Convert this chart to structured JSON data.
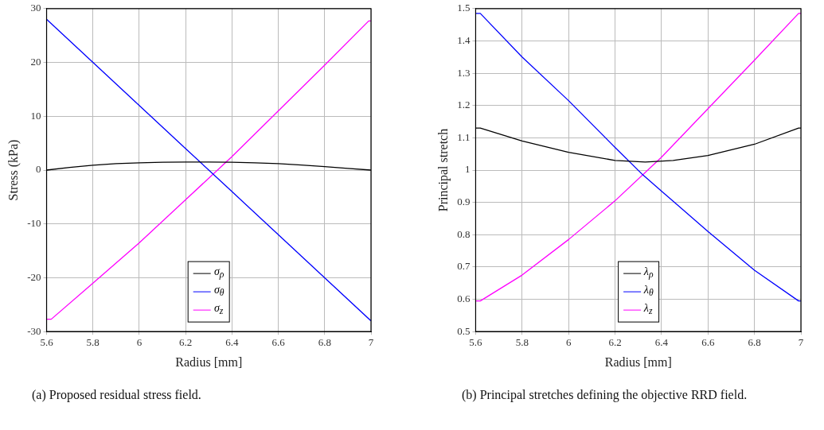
{
  "chart_data": [
    {
      "type": "line",
      "xlabel": "Radius [mm]",
      "ylabel": "Stress (kPa)",
      "xlim": [
        5.6,
        7
      ],
      "xticks": [
        5.6,
        5.8,
        6,
        6.2,
        6.4,
        6.6,
        6.8,
        7
      ],
      "ylim": [
        -30,
        30
      ],
      "yticks": [
        -30,
        -20,
        -10,
        0,
        10,
        20,
        30
      ],
      "grid": true,
      "legend": "bottom",
      "annotations": [
        "(a) Proposed residual stress field."
      ],
      "series": [
        {
          "name": "σ$_{ρ}$",
          "color": "#000000",
          "x": [
            5.6,
            5.7,
            5.8,
            5.9,
            6.0,
            6.1,
            6.2,
            6.3,
            6.4,
            6.5,
            6.6,
            6.7,
            6.8,
            6.9,
            7.0
          ],
          "values": [
            0,
            0.5,
            0.9,
            1.2,
            1.35,
            1.45,
            1.5,
            1.5,
            1.45,
            1.35,
            1.2,
            0.95,
            0.65,
            0.3,
            0
          ]
        },
        {
          "name": "σ$_{θ}$",
          "color": "#0000ff",
          "x": [
            5.6,
            5.8,
            6.0,
            6.2,
            6.4,
            6.6,
            6.8,
            7.0
          ],
          "values": [
            28,
            20,
            12,
            4,
            -4,
            -12,
            -20,
            -28
          ]
        },
        {
          "name": "σ$_{z}$",
          "color": "#ff00ff",
          "x": [
            5.6,
            5.62,
            5.8,
            6.0,
            6.2,
            6.4,
            6.6,
            6.8,
            6.99,
            7.0
          ],
          "values": [
            -27.7,
            -27.7,
            -21,
            -13.5,
            -5.5,
            2.5,
            11,
            19.5,
            27.7,
            27.7
          ]
        }
      ]
    },
    {
      "type": "line",
      "xlabel": "Radius [mm]",
      "ylabel": "Principal stretch",
      "xlim": [
        5.6,
        7
      ],
      "xticks": [
        5.6,
        5.8,
        6,
        6.2,
        6.4,
        6.6,
        6.8,
        7
      ],
      "ylim": [
        0.5,
        1.5
      ],
      "yticks": [
        0.5,
        0.6,
        0.7,
        0.8,
        0.9,
        1,
        1.1,
        1.2,
        1.3,
        1.4,
        1.5
      ],
      "grid": true,
      "legend": "bottom",
      "annotations": [
        "(b) Principal stretches defining the objective RRD field."
      ],
      "series": [
        {
          "name": "λ$_{ρ}$",
          "color": "#000000",
          "x": [
            5.6,
            5.62,
            5.8,
            6.0,
            6.2,
            6.33,
            6.45,
            6.6,
            6.8,
            6.99,
            7.0
          ],
          "values": [
            1.13,
            1.13,
            1.09,
            1.055,
            1.03,
            1.025,
            1.03,
            1.045,
            1.08,
            1.13,
            1.13
          ]
        },
        {
          "name": "λ$_{θ}$",
          "color": "#0000ff",
          "x": [
            5.6,
            5.62,
            5.8,
            6.0,
            6.2,
            6.32,
            6.4,
            6.6,
            6.8,
            6.99,
            7.0
          ],
          "values": [
            1.485,
            1.485,
            1.35,
            1.215,
            1.07,
            0.985,
            0.935,
            0.81,
            0.69,
            0.595,
            0.595
          ]
        },
        {
          "name": "λ$_{z}$",
          "color": "#ff00ff",
          "x": [
            5.6,
            5.62,
            5.8,
            6.0,
            6.2,
            6.4,
            6.6,
            6.8,
            6.99,
            7.0
          ],
          "values": [
            0.595,
            0.595,
            0.675,
            0.785,
            0.905,
            1.04,
            1.19,
            1.34,
            1.485,
            1.485
          ]
        }
      ]
    }
  ]
}
